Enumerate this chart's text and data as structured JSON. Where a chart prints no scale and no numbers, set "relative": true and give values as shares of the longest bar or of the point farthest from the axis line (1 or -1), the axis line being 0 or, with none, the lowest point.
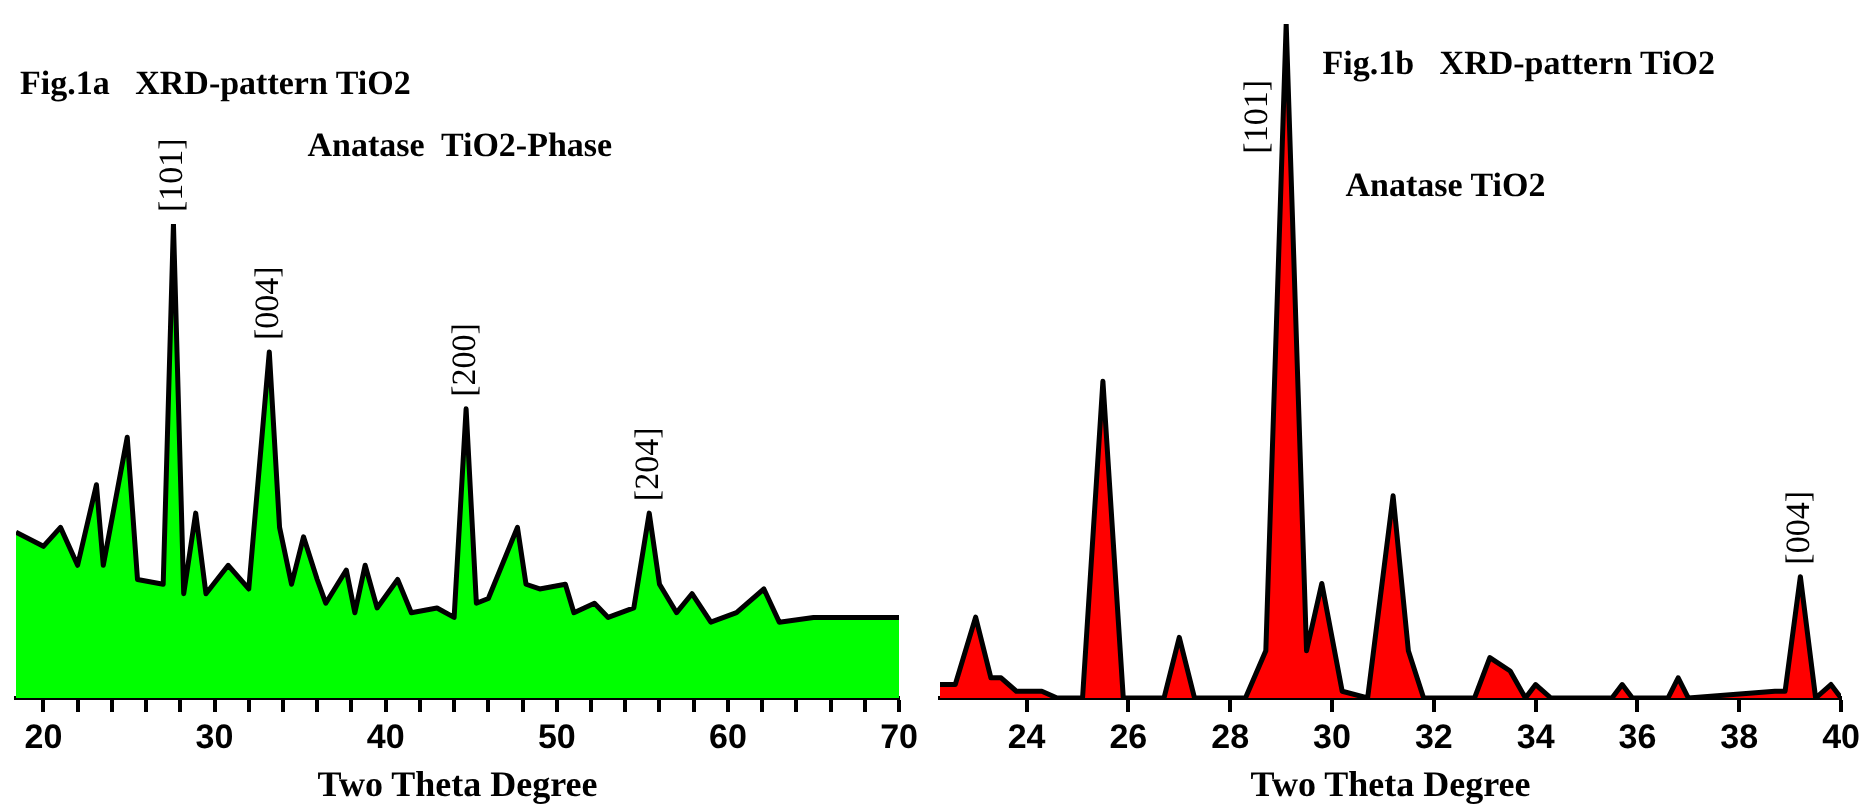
{
  "chart_data": [
    {
      "type": "area",
      "title": "Fig.1a   XRD-pattern TiO2",
      "xlabel": "Two Theta Degree",
      "relative": true,
      "grid": false,
      "legend": false,
      "xlim": [
        18.4,
        70
      ],
      "xticks": [
        20,
        {
          "value": 22,
          "label": null
        },
        {
          "value": 24,
          "label": null
        },
        {
          "value": 26,
          "label": null
        },
        {
          "value": 28,
          "label": null
        },
        30,
        {
          "value": 32,
          "label": null
        },
        {
          "value": 34,
          "label": null
        },
        {
          "value": 36,
          "label": null
        },
        {
          "value": 38,
          "label": null
        },
        40,
        {
          "value": 42,
          "label": null
        },
        {
          "value": 44,
          "label": null
        },
        {
          "value": 46,
          "label": null
        },
        {
          "value": 48,
          "label": null
        },
        50,
        {
          "value": 52,
          "label": null
        },
        {
          "value": 54,
          "label": null
        },
        {
          "value": 56,
          "label": null
        },
        {
          "value": 58,
          "label": null
        },
        60,
        {
          "value": 62,
          "label": null
        },
        {
          "value": 64,
          "label": null
        },
        {
          "value": 66,
          "label": null
        },
        {
          "value": 68,
          "label": null
        },
        70
      ],
      "annotations": [
        "Anatase  TiO2-Phase",
        {
          "text": "[101]",
          "x": 27.6,
          "y": 1.0
        },
        {
          "text": "[004]",
          "x": 33.2,
          "y": 0.73
        },
        {
          "text": "[200]",
          "x": 44.7,
          "y": 0.61
        },
        {
          "text": "[204]",
          "x": 55.4,
          "y": 0.39
        }
      ],
      "series": [
        {
          "color": "#00ff00",
          "x": [
            18.4,
            20,
            21,
            22,
            23.1,
            23.5,
            24.9,
            25.5,
            27,
            27.6,
            28.2,
            28.9,
            29.5,
            30.8,
            32,
            33.2,
            33.8,
            34.5,
            35.2,
            36,
            36.5,
            37.7,
            38.2,
            38.8,
            39.5,
            40.7,
            41.5,
            43,
            44,
            44.7,
            45.3,
            46,
            47.7,
            48.2,
            49,
            50.5,
            51,
            52.2,
            53,
            54.5,
            55.4,
            56,
            57,
            57.9,
            59,
            60.5,
            62.1,
            63,
            65,
            70
          ],
          "values": [
            0.35,
            0.32,
            0.36,
            0.28,
            0.45,
            0.28,
            0.55,
            0.25,
            0.24,
            1.0,
            0.22,
            0.39,
            0.22,
            0.28,
            0.23,
            0.73,
            0.36,
            0.24,
            0.34,
            0.25,
            0.2,
            0.27,
            0.18,
            0.28,
            0.19,
            0.25,
            0.18,
            0.19,
            0.17,
            0.61,
            0.2,
            0.21,
            0.36,
            0.24,
            0.23,
            0.24,
            0.18,
            0.2,
            0.17,
            0.19,
            0.39,
            0.24,
            0.18,
            0.22,
            0.16,
            0.18,
            0.23,
            0.16,
            0.17,
            0.17
          ]
        }
      ]
    },
    {
      "type": "area",
      "title": "Fig.1b   XRD-pattern TiO2",
      "xlabel": "Two Theta Degree",
      "relative": true,
      "grid": false,
      "legend": false,
      "xlim": [
        22.3,
        40
      ],
      "xticks": [
        24,
        26,
        28,
        30,
        32,
        34,
        36,
        38,
        40
      ],
      "annotations": [
        "Anatase TiO2",
        {
          "text": "[101]",
          "x": 29.1,
          "y": 1.0
        },
        {
          "text": "[004]",
          "x": 39.2,
          "y": 0.18
        }
      ],
      "series": [
        {
          "color": "#ff0000",
          "x": [
            22.3,
            22.6,
            23.0,
            23.3,
            23.5,
            23.8,
            24.3,
            24.6,
            25.1,
            25.5,
            25.9,
            26.7,
            27.0,
            27.3,
            28.3,
            28.7,
            29.1,
            29.5,
            29.8,
            30.2,
            30.7,
            31.2,
            31.5,
            31.8,
            32.8,
            33.1,
            33.5,
            33.8,
            34.0,
            34.3,
            35.5,
            35.7,
            35.9,
            36.6,
            36.8,
            37.0,
            38.7,
            38.9,
            39.2,
            39.5,
            39.8,
            40
          ],
          "values": [
            0.02,
            0.02,
            0.12,
            0.03,
            0.03,
            0.01,
            0.01,
            0,
            0,
            0.47,
            0,
            0,
            0.09,
            0,
            0,
            0.07,
            1.0,
            0.07,
            0.17,
            0.01,
            0,
            0.3,
            0.07,
            0,
            0,
            0.06,
            0.04,
            0,
            0.02,
            0,
            0,
            0.02,
            0,
            0,
            0.03,
            0,
            0.01,
            0.01,
            0.18,
            0,
            0.02,
            0
          ]
        }
      ]
    }
  ]
}
